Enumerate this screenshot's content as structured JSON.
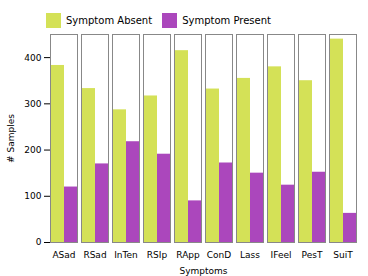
{
  "chart_data": {
    "type": "bar",
    "categories": [
      "ASad",
      "RSad",
      "InTen",
      "RSIp",
      "RApp",
      "ConD",
      "Lass",
      "IFeel",
      "PesT",
      "SuiT"
    ],
    "series": [
      {
        "name": "Symptom Absent",
        "color": "#d4e157",
        "values": [
          383,
          333,
          287,
          317,
          415,
          332,
          355,
          380,
          350,
          440
        ]
      },
      {
        "name": "Symptom Present",
        "color": "#ab47bc",
        "values": [
          120,
          170,
          218,
          191,
          90,
          172,
          150,
          124,
          152,
          63
        ]
      }
    ],
    "xlabel": "Symptoms",
    "ylabel": "# Samples",
    "ylim": [
      0,
      450
    ],
    "yticks": [
      0,
      100,
      200,
      300,
      400
    ],
    "legend": "upper left",
    "grid": false
  }
}
